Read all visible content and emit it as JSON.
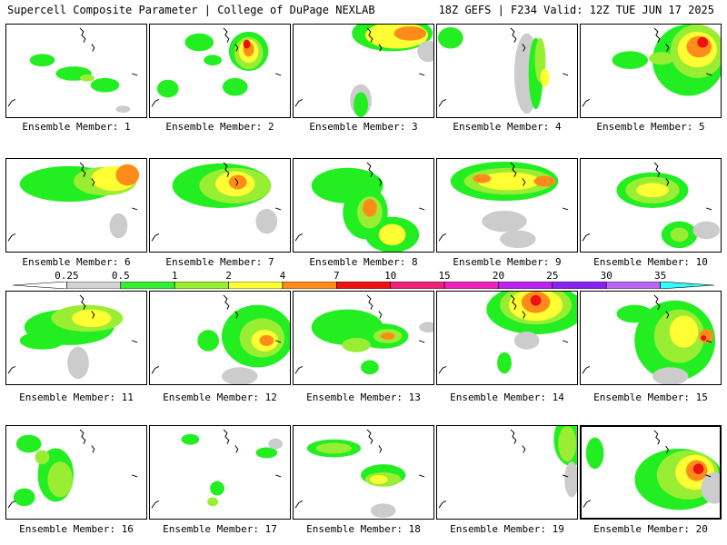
{
  "header": {
    "left_title": "Supercell Composite Parameter | College of DuPage NEXLAB",
    "right_title": "18Z GEFS | F234 Valid: 12Z TUE JUN 17 2025"
  },
  "colorbar": {
    "ticks": [
      "0.25",
      "0.5",
      "1",
      "2",
      "4",
      "7",
      "10",
      "15",
      "20",
      "25",
      "30",
      "35"
    ],
    "colors": [
      "#ffffff",
      "#d3d3d3",
      "#33ee33",
      "#99ee33",
      "#ffff33",
      "#ff8c1a",
      "#ee1111",
      "#ee2277",
      "#ee22bb",
      "#bb22ee",
      "#8822ee",
      "#bb66ee",
      "#33ffff"
    ]
  },
  "panels": [
    {
      "label": "Ensemble Member: 1"
    },
    {
      "label": "Ensemble Member: 2"
    },
    {
      "label": "Ensemble Member: 3"
    },
    {
      "label": "Ensemble Member: 4"
    },
    {
      "label": "Ensemble Member: 5"
    },
    {
      "label": "Ensemble Member: 6"
    },
    {
      "label": "Ensemble Member: 7"
    },
    {
      "label": "Ensemble Member: 8"
    },
    {
      "label": "Ensemble Member: 9"
    },
    {
      "label": "Ensemble Member: 10"
    },
    {
      "label": "Ensemble Member: 11"
    },
    {
      "label": "Ensemble Member: 12"
    },
    {
      "label": "Ensemble Member: 13"
    },
    {
      "label": "Ensemble Member: 14"
    },
    {
      "label": "Ensemble Member: 15"
    },
    {
      "label": "Ensemble Member: 16"
    },
    {
      "label": "Ensemble Member: 17"
    },
    {
      "label": "Ensemble Member: 18"
    },
    {
      "label": "Ensemble Member: 19"
    },
    {
      "label": "Ensemble Member: 20"
    }
  ]
}
